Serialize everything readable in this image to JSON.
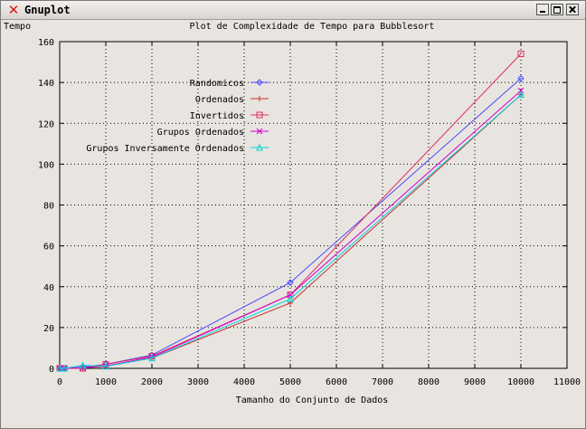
{
  "window": {
    "title": "Gnuplot"
  },
  "chart_data": {
    "type": "line",
    "title": "Plot de Complexidade de Tempo para Bubblesort",
    "ylabel": "Tempo",
    "xlabel": "Tamanho do Conjunto de Dados",
    "xlim": [
      0,
      11000
    ],
    "ylim": [
      0,
      160
    ],
    "xticks": [
      0,
      1000,
      2000,
      3000,
      4000,
      5000,
      6000,
      7000,
      8000,
      9000,
      10000,
      11000
    ],
    "yticks": [
      0,
      20,
      40,
      60,
      80,
      100,
      120,
      140,
      160
    ],
    "grid": true,
    "legend_position": "top-left-center",
    "x": [
      0,
      100,
      500,
      1000,
      2000,
      5000,
      10000
    ],
    "series": [
      {
        "name": "Randomicos",
        "color": "#4848ff",
        "marker": "diamond",
        "values": [
          0,
          0,
          0.6,
          2,
          6.5,
          42,
          142
        ]
      },
      {
        "name": "Ordenados",
        "color": "#c83030",
        "marker": "plus",
        "values": [
          0,
          0,
          0.2,
          1,
          5,
          32,
          134
        ]
      },
      {
        "name": "Invertidos",
        "color": "#e03060",
        "marker": "square",
        "values": [
          0,
          0,
          0,
          2,
          6,
          36,
          154
        ]
      },
      {
        "name": "Grupos Ordenados",
        "color": "#d000d0",
        "marker": "cross",
        "values": [
          0,
          0,
          0.3,
          1.2,
          5.5,
          36,
          136
        ]
      },
      {
        "name": "Grupos Inversamente Ordenados",
        "color": "#00d8d8",
        "marker": "triangle",
        "values": [
          0,
          0,
          1.5,
          1,
          5,
          34,
          134
        ]
      }
    ]
  }
}
